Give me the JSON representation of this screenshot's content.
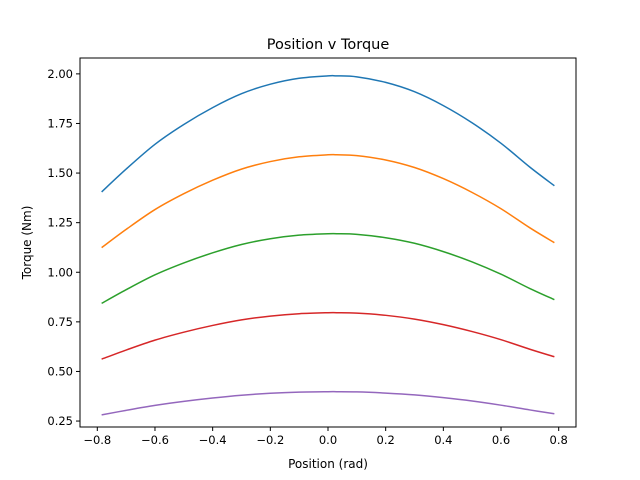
{
  "chart_data": {
    "type": "line",
    "title": "Position v Torque",
    "xlabel": "Position (rad)",
    "ylabel": "Torque (Nm)",
    "xlim": [
      -0.86,
      0.86
    ],
    "ylim": [
      0.22,
      2.08
    ],
    "xticks": [
      -0.8,
      -0.6,
      -0.4,
      -0.2,
      0.0,
      0.2,
      0.4,
      0.6,
      0.8
    ],
    "xtick_labels": [
      "−0.8",
      "−0.6",
      "−0.4",
      "−0.2",
      "0.0",
      "0.2",
      "0.4",
      "0.6",
      "0.8"
    ],
    "yticks": [
      0.25,
      0.5,
      0.75,
      1.0,
      1.25,
      1.5,
      1.75,
      2.0
    ],
    "ytick_labels": [
      "0.25",
      "0.50",
      "0.75",
      "1.00",
      "1.25",
      "1.50",
      "1.75",
      "2.00"
    ],
    "grid": false,
    "x": [
      -0.785,
      -0.7,
      -0.6,
      -0.5,
      -0.4,
      -0.3,
      -0.2,
      -0.1,
      0.0,
      0.03,
      0.1,
      0.2,
      0.3,
      0.4,
      0.5,
      0.6,
      0.7,
      0.785
    ],
    "series": [
      {
        "color": "#1f77b4",
        "values": [
          1.405,
          1.52,
          1.645,
          1.745,
          1.83,
          1.9,
          1.948,
          1.978,
          1.99,
          1.99,
          1.985,
          1.957,
          1.91,
          1.84,
          1.753,
          1.65,
          1.53,
          1.436
        ]
      },
      {
        "color": "#ff7f0e",
        "values": [
          1.124,
          1.216,
          1.316,
          1.396,
          1.464,
          1.52,
          1.558,
          1.582,
          1.592,
          1.592,
          1.588,
          1.566,
          1.528,
          1.472,
          1.402,
          1.32,
          1.224,
          1.149
        ]
      },
      {
        "color": "#2ca02c",
        "values": [
          0.843,
          0.912,
          0.987,
          1.047,
          1.098,
          1.14,
          1.169,
          1.187,
          1.194,
          1.194,
          1.191,
          1.174,
          1.146,
          1.104,
          1.052,
          0.99,
          0.918,
          0.862
        ]
      },
      {
        "color": "#d62728",
        "values": [
          0.562,
          0.608,
          0.658,
          0.698,
          0.732,
          0.76,
          0.779,
          0.791,
          0.796,
          0.796,
          0.794,
          0.783,
          0.764,
          0.736,
          0.701,
          0.66,
          0.612,
          0.574
        ]
      },
      {
        "color": "#9467bd",
        "values": [
          0.281,
          0.304,
          0.329,
          0.349,
          0.366,
          0.38,
          0.39,
          0.396,
          0.398,
          0.398,
          0.397,
          0.391,
          0.382,
          0.368,
          0.351,
          0.33,
          0.306,
          0.287
        ]
      }
    ]
  }
}
